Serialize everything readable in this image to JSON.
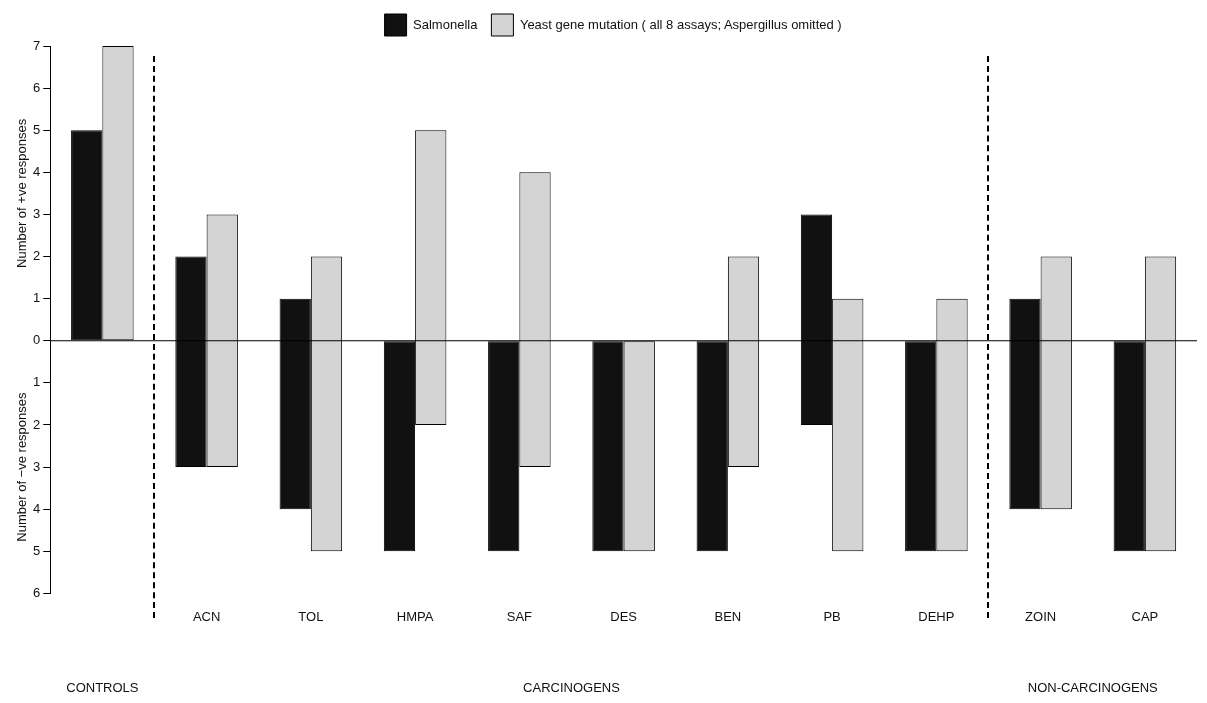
{
  "chart_data": {
    "type": "bar",
    "ylabel": "Number of +ve responses",
    "categories": [
      null,
      "ACN",
      "TOL",
      "HMPA",
      "SAF",
      "DES",
      "BEN",
      "PB",
      "DEHP",
      "ZOIN",
      "CAP"
    ],
    "series": [
      {
        "name": "Salmonella",
        "color": "#111111",
        "base": [
          0,
          -3,
          -4,
          -5,
          -5,
          -5,
          -5,
          -2,
          -5,
          -4,
          -5
        ],
        "values": [
          5,
          5,
          5,
          5,
          5,
          5,
          5,
          5,
          5,
          5,
          5
        ]
      },
      {
        "name": "Yeast gene mutation ( all 8 assays; Aspergillus omitted )",
        "color": "#d4d4d4",
        "base": [
          0,
          -3,
          -5,
          -2,
          -3,
          -5,
          -3,
          -5,
          -5,
          -4,
          -5
        ],
        "values": [
          7,
          6,
          7,
          7,
          7,
          5,
          5,
          6,
          6,
          6,
          7
        ]
      }
    ],
    "ylim": [
      -6,
      7
    ],
    "yticks": [
      {
        "value": -6,
        "label": "6"
      },
      {
        "value": -5,
        "label": "5"
      },
      {
        "value": -4,
        "label": "4"
      },
      {
        "value": -3,
        "label": "3"
      },
      {
        "value": -2,
        "label": "2"
      },
      {
        "value": -1,
        "label": "1"
      },
      0,
      1,
      2,
      3,
      4,
      5,
      6,
      7
    ],
    "legend": "top",
    "annotations": [
      "Number of −ve responses",
      "CONTROLS",
      "CARCINOGENS",
      "NON-CARCINOGENS"
    ]
  }
}
